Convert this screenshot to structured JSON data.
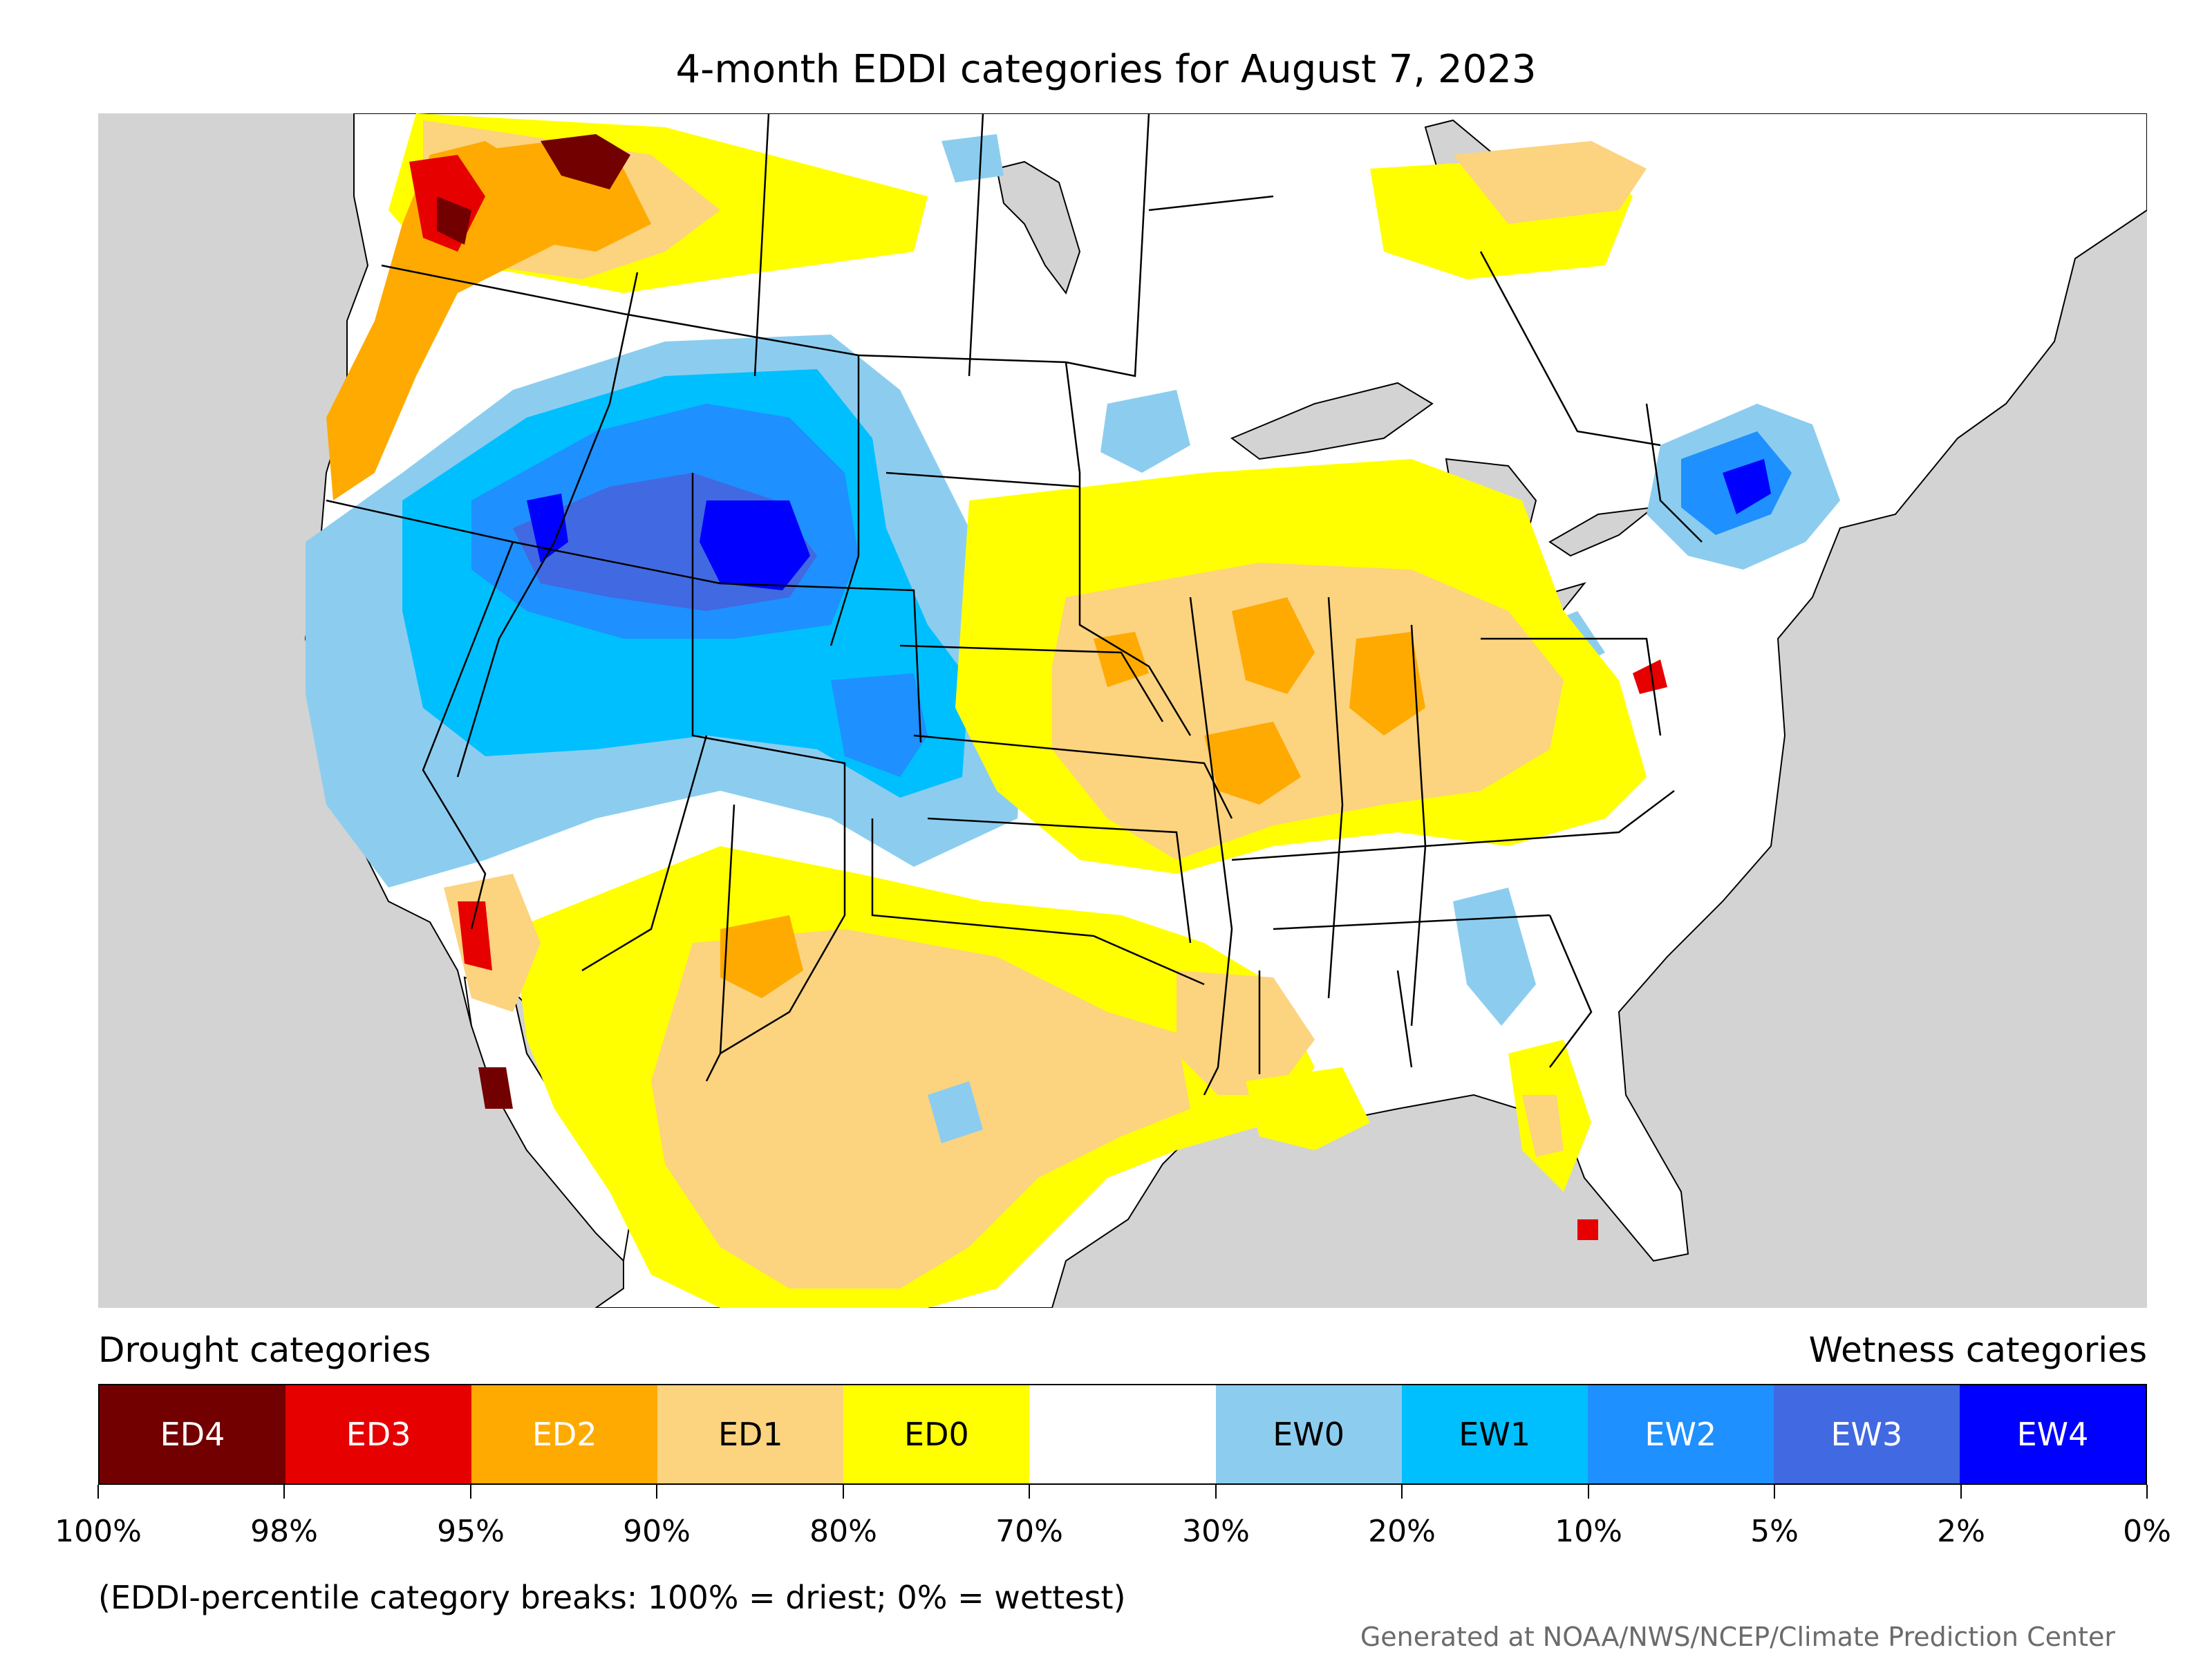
{
  "title": "4-month EDDI categories for August 7, 2023",
  "legend": {
    "drought_heading": "Drought categories",
    "wetness_heading": "Wetness categories",
    "categories": [
      {
        "label": "ED4",
        "color": "#730000",
        "text_color": "#ffffff"
      },
      {
        "label": "ED3",
        "color": "#e60000",
        "text_color": "#ffffff"
      },
      {
        "label": "ED2",
        "color": "#ffaa00",
        "text_color": "#ffffff"
      },
      {
        "label": "ED1",
        "color": "#fcd37f",
        "text_color": "#000000"
      },
      {
        "label": "ED0",
        "color": "#ffff00",
        "text_color": "#000000"
      },
      {
        "label": "",
        "color": "#ffffff",
        "text_color": "#000000"
      },
      {
        "label": "EW0",
        "color": "#8ccdef",
        "text_color": "#000000"
      },
      {
        "label": "EW1",
        "color": "#00bfff",
        "text_color": "#000000"
      },
      {
        "label": "EW2",
        "color": "#1e90ff",
        "text_color": "#ffffff"
      },
      {
        "label": "EW3",
        "color": "#4169e1",
        "text_color": "#ffffff"
      },
      {
        "label": "EW4",
        "color": "#0000ff",
        "text_color": "#ffffff"
      }
    ],
    "tick_labels": [
      "100%",
      "98%",
      "95%",
      "90%",
      "80%",
      "70%",
      "30%",
      "20%",
      "10%",
      "5%",
      "2%",
      "0%"
    ]
  },
  "footnote": "(EDDI-percentile category breaks: 100% = driest; 0% = wettest)",
  "credit": "Generated at NOAA/NWS/NCEP/Climate Prediction Center",
  "colors": {
    "ocean": "#d3d3d3",
    "land": "#ffffff",
    "boundary": "#000000"
  }
}
